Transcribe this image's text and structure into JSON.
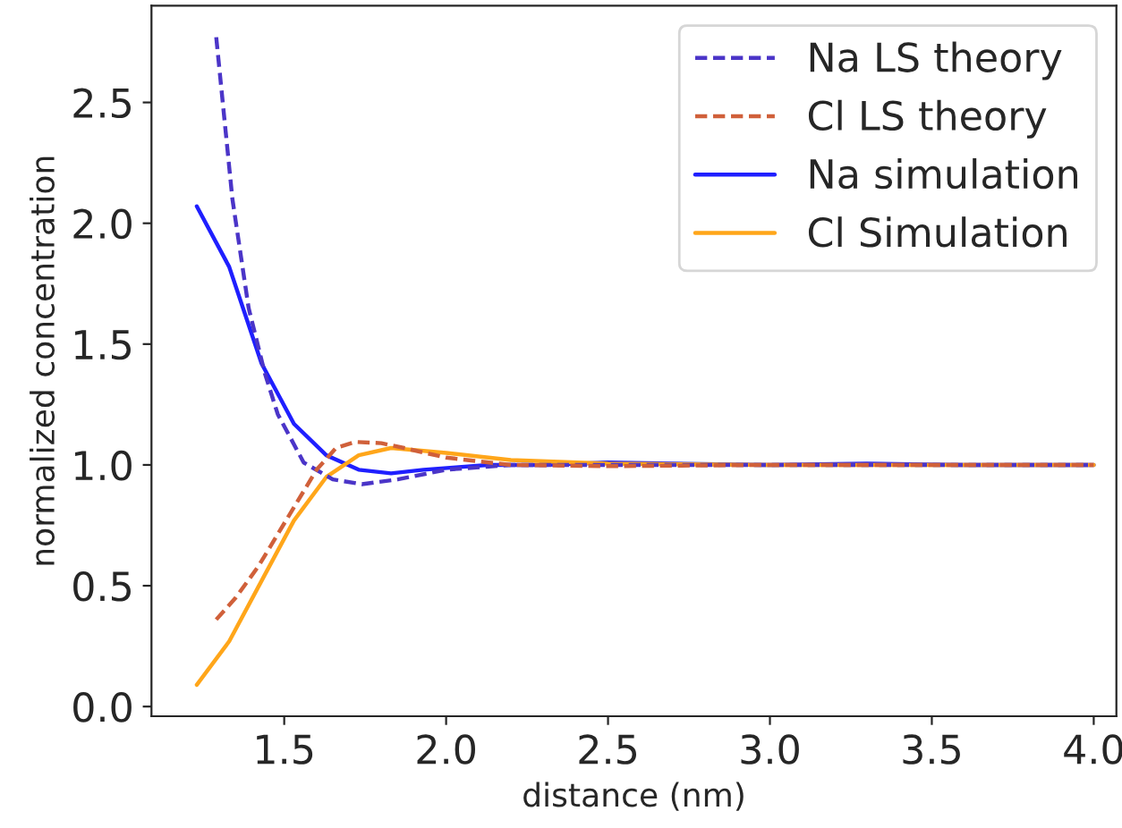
{
  "chart_data": {
    "type": "line",
    "xlabel": "distance (nm)",
    "ylabel": "normalized concentration",
    "xlim": [
      1.09,
      4.07
    ],
    "ylim": [
      -0.04,
      2.9
    ],
    "xticks": [
      {
        "value": 1.5,
        "label": "1.5"
      },
      {
        "value": 2.0,
        "label": "2.0"
      },
      {
        "value": 2.5,
        "label": "2.5"
      },
      {
        "value": 3.0,
        "label": "3.0"
      },
      {
        "value": 3.5,
        "label": "3.5"
      },
      {
        "value": 4.0,
        "label": "4.0"
      }
    ],
    "yticks": [
      {
        "value": 0.0,
        "label": "0.0"
      },
      {
        "value": 0.5,
        "label": "0.5"
      },
      {
        "value": 1.0,
        "label": "1.0"
      },
      {
        "value": 1.5,
        "label": "1.5"
      },
      {
        "value": 2.0,
        "label": "2.0"
      },
      {
        "value": 2.5,
        "label": "2.5"
      }
    ],
    "grid": false,
    "legend": "top right",
    "series": [
      {
        "name": "Na LS theory",
        "color": "#4b35c8",
        "line_style": "dashed",
        "x": [
          1.29,
          1.34,
          1.39,
          1.44,
          1.48,
          1.56,
          1.65,
          1.74,
          1.85,
          2.0,
          2.2,
          2.5,
          3.0,
          3.5,
          4.0
        ],
        "values": [
          2.77,
          2.1,
          1.65,
          1.38,
          1.21,
          1.01,
          0.94,
          0.92,
          0.94,
          0.98,
          1.0,
          1.0,
          1.0,
          1.0,
          1.0
        ]
      },
      {
        "name": "Cl LS theory",
        "color": "#d0603a",
        "line_style": "dashed",
        "x": [
          1.29,
          1.35,
          1.42,
          1.51,
          1.6,
          1.66,
          1.72,
          1.8,
          1.87,
          2.0,
          2.2,
          2.5,
          3.0,
          3.5,
          4.0
        ],
        "values": [
          0.36,
          0.45,
          0.58,
          0.78,
          0.98,
          1.07,
          1.095,
          1.09,
          1.07,
          1.03,
          1.0,
          0.995,
          1.0,
          1.0,
          1.0
        ]
      },
      {
        "name": "Na simulation",
        "color": "#1f1fff",
        "line_style": "solid",
        "x": [
          1.23,
          1.33,
          1.43,
          1.53,
          1.63,
          1.73,
          1.83,
          1.93,
          2.03,
          2.13,
          2.3,
          2.5,
          2.7,
          3.0,
          3.3,
          3.6,
          4.0
        ],
        "values": [
          2.07,
          1.82,
          1.42,
          1.17,
          1.04,
          0.98,
          0.965,
          0.98,
          0.99,
          1.0,
          1.0,
          1.01,
          1.005,
          1.0,
          1.005,
          1.0,
          1.0
        ]
      },
      {
        "name": "Cl Simulation",
        "color": "#ffa61a",
        "line_style": "solid",
        "x": [
          1.23,
          1.33,
          1.43,
          1.53,
          1.63,
          1.73,
          1.83,
          2.0,
          2.2,
          2.5,
          3.0,
          3.5,
          4.0
        ],
        "values": [
          0.09,
          0.27,
          0.52,
          0.77,
          0.95,
          1.04,
          1.07,
          1.05,
          1.02,
          1.005,
          1.0,
          1.0,
          1.0
        ]
      }
    ]
  }
}
